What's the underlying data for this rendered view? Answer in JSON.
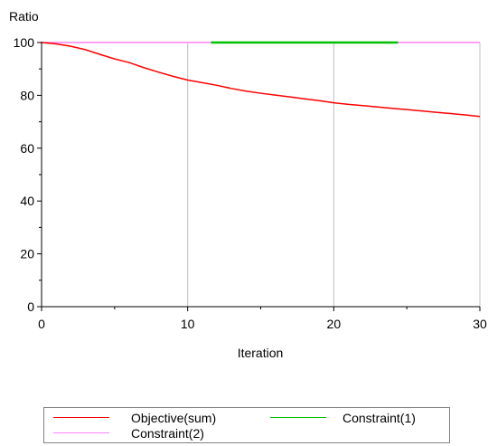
{
  "chart_data": {
    "type": "line",
    "title": "",
    "ylabel": "Ratio",
    "xlabel": "Iteration",
    "xlim": [
      0,
      30
    ],
    "ylim": [
      0,
      100
    ],
    "x_ticks": [
      0,
      10,
      20,
      30
    ],
    "y_ticks": [
      0,
      20,
      40,
      60,
      80,
      100
    ],
    "grid": "vertical",
    "legend_position": "bottom",
    "series": [
      {
        "name": "Objective(sum)",
        "color": "#ff0000",
        "x": [
          0,
          1,
          2,
          3,
          4,
          5,
          6,
          7,
          8,
          9,
          10,
          11,
          12,
          13,
          14,
          15,
          16,
          17,
          18,
          19,
          20,
          21,
          22,
          23,
          24,
          25,
          26,
          27,
          28,
          29,
          30
        ],
        "y": [
          100,
          99.5,
          98.6,
          97.3,
          95.5,
          93.8,
          92.4,
          90.5,
          88.8,
          87.2,
          85.8,
          84.8,
          83.8,
          82.6,
          81.6,
          80.8,
          80.1,
          79.4,
          78.7,
          78.0,
          77.2,
          76.6,
          76.1,
          75.6,
          75.1,
          74.6,
          74.1,
          73.6,
          73.1,
          72.6,
          72.0
        ]
      },
      {
        "name": "Constraint(1)",
        "color": "#00c000",
        "x": [
          11.6,
          24.4
        ],
        "y": [
          100,
          100
        ]
      },
      {
        "name": "Constraint(2)",
        "color": "#ff80ff",
        "x": [
          0,
          30
        ],
        "y": [
          100,
          100
        ]
      }
    ]
  }
}
